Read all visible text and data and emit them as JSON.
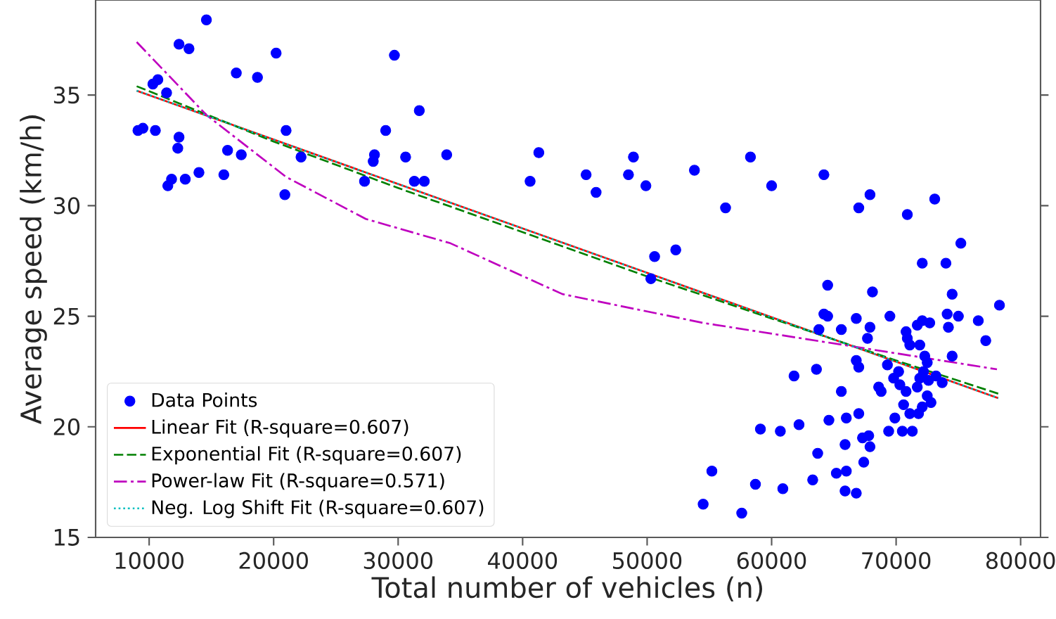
{
  "chart_data": {
    "type": "scatter",
    "xlabel": "Total number of vehicles (n)",
    "ylabel": "Average speed (km/h)",
    "xlim": [
      5700,
      81600
    ],
    "ylim": [
      15,
      39.3
    ],
    "xticks": [
      10000,
      20000,
      30000,
      40000,
      50000,
      60000,
      70000,
      80000
    ],
    "yticks": [
      15,
      20,
      25,
      30,
      35
    ],
    "legend": "bottom left",
    "series": [
      {
        "name": "Data Points",
        "color": "#0000ff",
        "marker": "circle",
        "x": [
          9100,
          9500,
          10500,
          10300,
          10700,
          11400,
          12400,
          13200,
          14600,
          12400,
          12300,
          11500,
          11800,
          12900,
          14000,
          16000,
          16300,
          17400,
          17000,
          18700,
          20200,
          21000,
          20900,
          22200,
          27300,
          28000,
          28100,
          29000,
          29700,
          30600,
          31700,
          31300,
          32100,
          33900,
          40600,
          41300,
          45100,
          45900,
          48500,
          48900,
          49900,
          50600,
          52300,
          50300,
          53800,
          56300,
          58300,
          60000,
          64200,
          67000,
          67900,
          70900,
          73100,
          75200,
          72100,
          74000,
          74500,
          64500,
          68100,
          78300,
          64200,
          64500,
          63800,
          65600,
          66800,
          67900,
          67700,
          69500,
          70800,
          70900,
          71100,
          71700,
          72100,
          72700,
          71900,
          74100,
          75000,
          74200,
          76600,
          77200,
          74500,
          72300,
          72500,
          66800,
          67000,
          69300,
          70200,
          69800,
          70300,
          70800,
          71700,
          71900,
          72200,
          73200,
          73700,
          72600,
          72500,
          72800,
          72100,
          71800,
          71100,
          70600,
          69900,
          69400,
          70500,
          71300,
          68600,
          68800,
          65600,
          63600,
          61800,
          67000,
          66000,
          64600,
          62200,
          59100,
          60700,
          65900,
          67300,
          67800,
          67900,
          63700,
          67400,
          66000,
          65200,
          63300,
          65900,
          66800,
          58700,
          60900,
          57600,
          55200,
          54500
        ],
        "values": [
          33.4,
          33.5,
          33.4,
          35.5,
          35.7,
          35.1,
          37.3,
          37.1,
          38.4,
          33.1,
          32.6,
          30.9,
          31.2,
          31.2,
          31.5,
          31.4,
          32.5,
          32.3,
          36.0,
          35.8,
          36.9,
          33.4,
          30.5,
          32.2,
          31.1,
          32.0,
          32.3,
          33.4,
          36.8,
          32.2,
          34.3,
          31.1,
          31.1,
          32.3,
          31.1,
          32.4,
          31.4,
          30.6,
          31.4,
          32.2,
          30.9,
          27.7,
          28.0,
          26.7,
          31.6,
          29.9,
          32.2,
          30.9,
          31.4,
          29.9,
          30.5,
          29.6,
          30.3,
          28.3,
          27.4,
          27.4,
          26.0,
          26.4,
          26.1,
          25.5,
          25.1,
          25.0,
          24.4,
          24.4,
          24.9,
          24.5,
          24.0,
          25.0,
          24.3,
          24.0,
          23.7,
          24.6,
          24.8,
          24.7,
          23.7,
          25.1,
          25.0,
          24.5,
          24.8,
          23.9,
          23.2,
          23.2,
          22.9,
          23.0,
          22.7,
          22.8,
          22.5,
          22.2,
          21.9,
          21.6,
          21.8,
          22.2,
          22.5,
          22.3,
          22.0,
          22.1,
          21.4,
          21.1,
          20.9,
          20.6,
          20.6,
          21.0,
          20.4,
          19.8,
          19.8,
          19.8,
          21.8,
          21.6,
          21.6,
          22.6,
          22.3,
          20.6,
          20.4,
          20.3,
          20.1,
          19.9,
          19.8,
          19.2,
          19.5,
          19.6,
          19.1,
          18.8,
          18.4,
          18.0,
          17.9,
          17.6,
          17.1,
          17.0,
          17.4,
          17.2,
          16.1,
          18.0,
          16.5
        ]
      },
      {
        "name": "Linear Fit (R-square=0.607)",
        "type": "line",
        "color": "#ff0000",
        "line_style": "solid",
        "x": [
          9000,
          50300,
          78200
        ],
        "values": [
          35.2,
          26.9,
          21.3
        ]
      },
      {
        "name": "Exponential Fit (R-square=0.607)",
        "type": "line",
        "color": "#008000",
        "line_style": "dashed",
        "x": [
          9000,
          20000,
          30000,
          40000,
          50000,
          60000,
          70000,
          78200
        ],
        "values": [
          35.4,
          32.9,
          30.8,
          28.8,
          26.8,
          24.9,
          23.0,
          21.5
        ]
      },
      {
        "name": "Power-law Fit (R-square=0.571)",
        "type": "line",
        "color": "#bf00bf",
        "line_style": "dashdot",
        "x": [
          9000,
          14600,
          21000,
          27400,
          34200,
          43200,
          54500,
          65800,
          78100
        ],
        "values": [
          37.4,
          34.1,
          31.3,
          29.4,
          28.3,
          26.0,
          24.7,
          23.7,
          22.6
        ]
      },
      {
        "name": "Neg. Log Shift Fit (R-square=0.607)",
        "type": "line",
        "color": "#00bfbf",
        "line_style": "dotted",
        "x": [
          9000,
          50300,
          78200
        ],
        "values": [
          35.2,
          26.9,
          21.3
        ]
      }
    ]
  }
}
